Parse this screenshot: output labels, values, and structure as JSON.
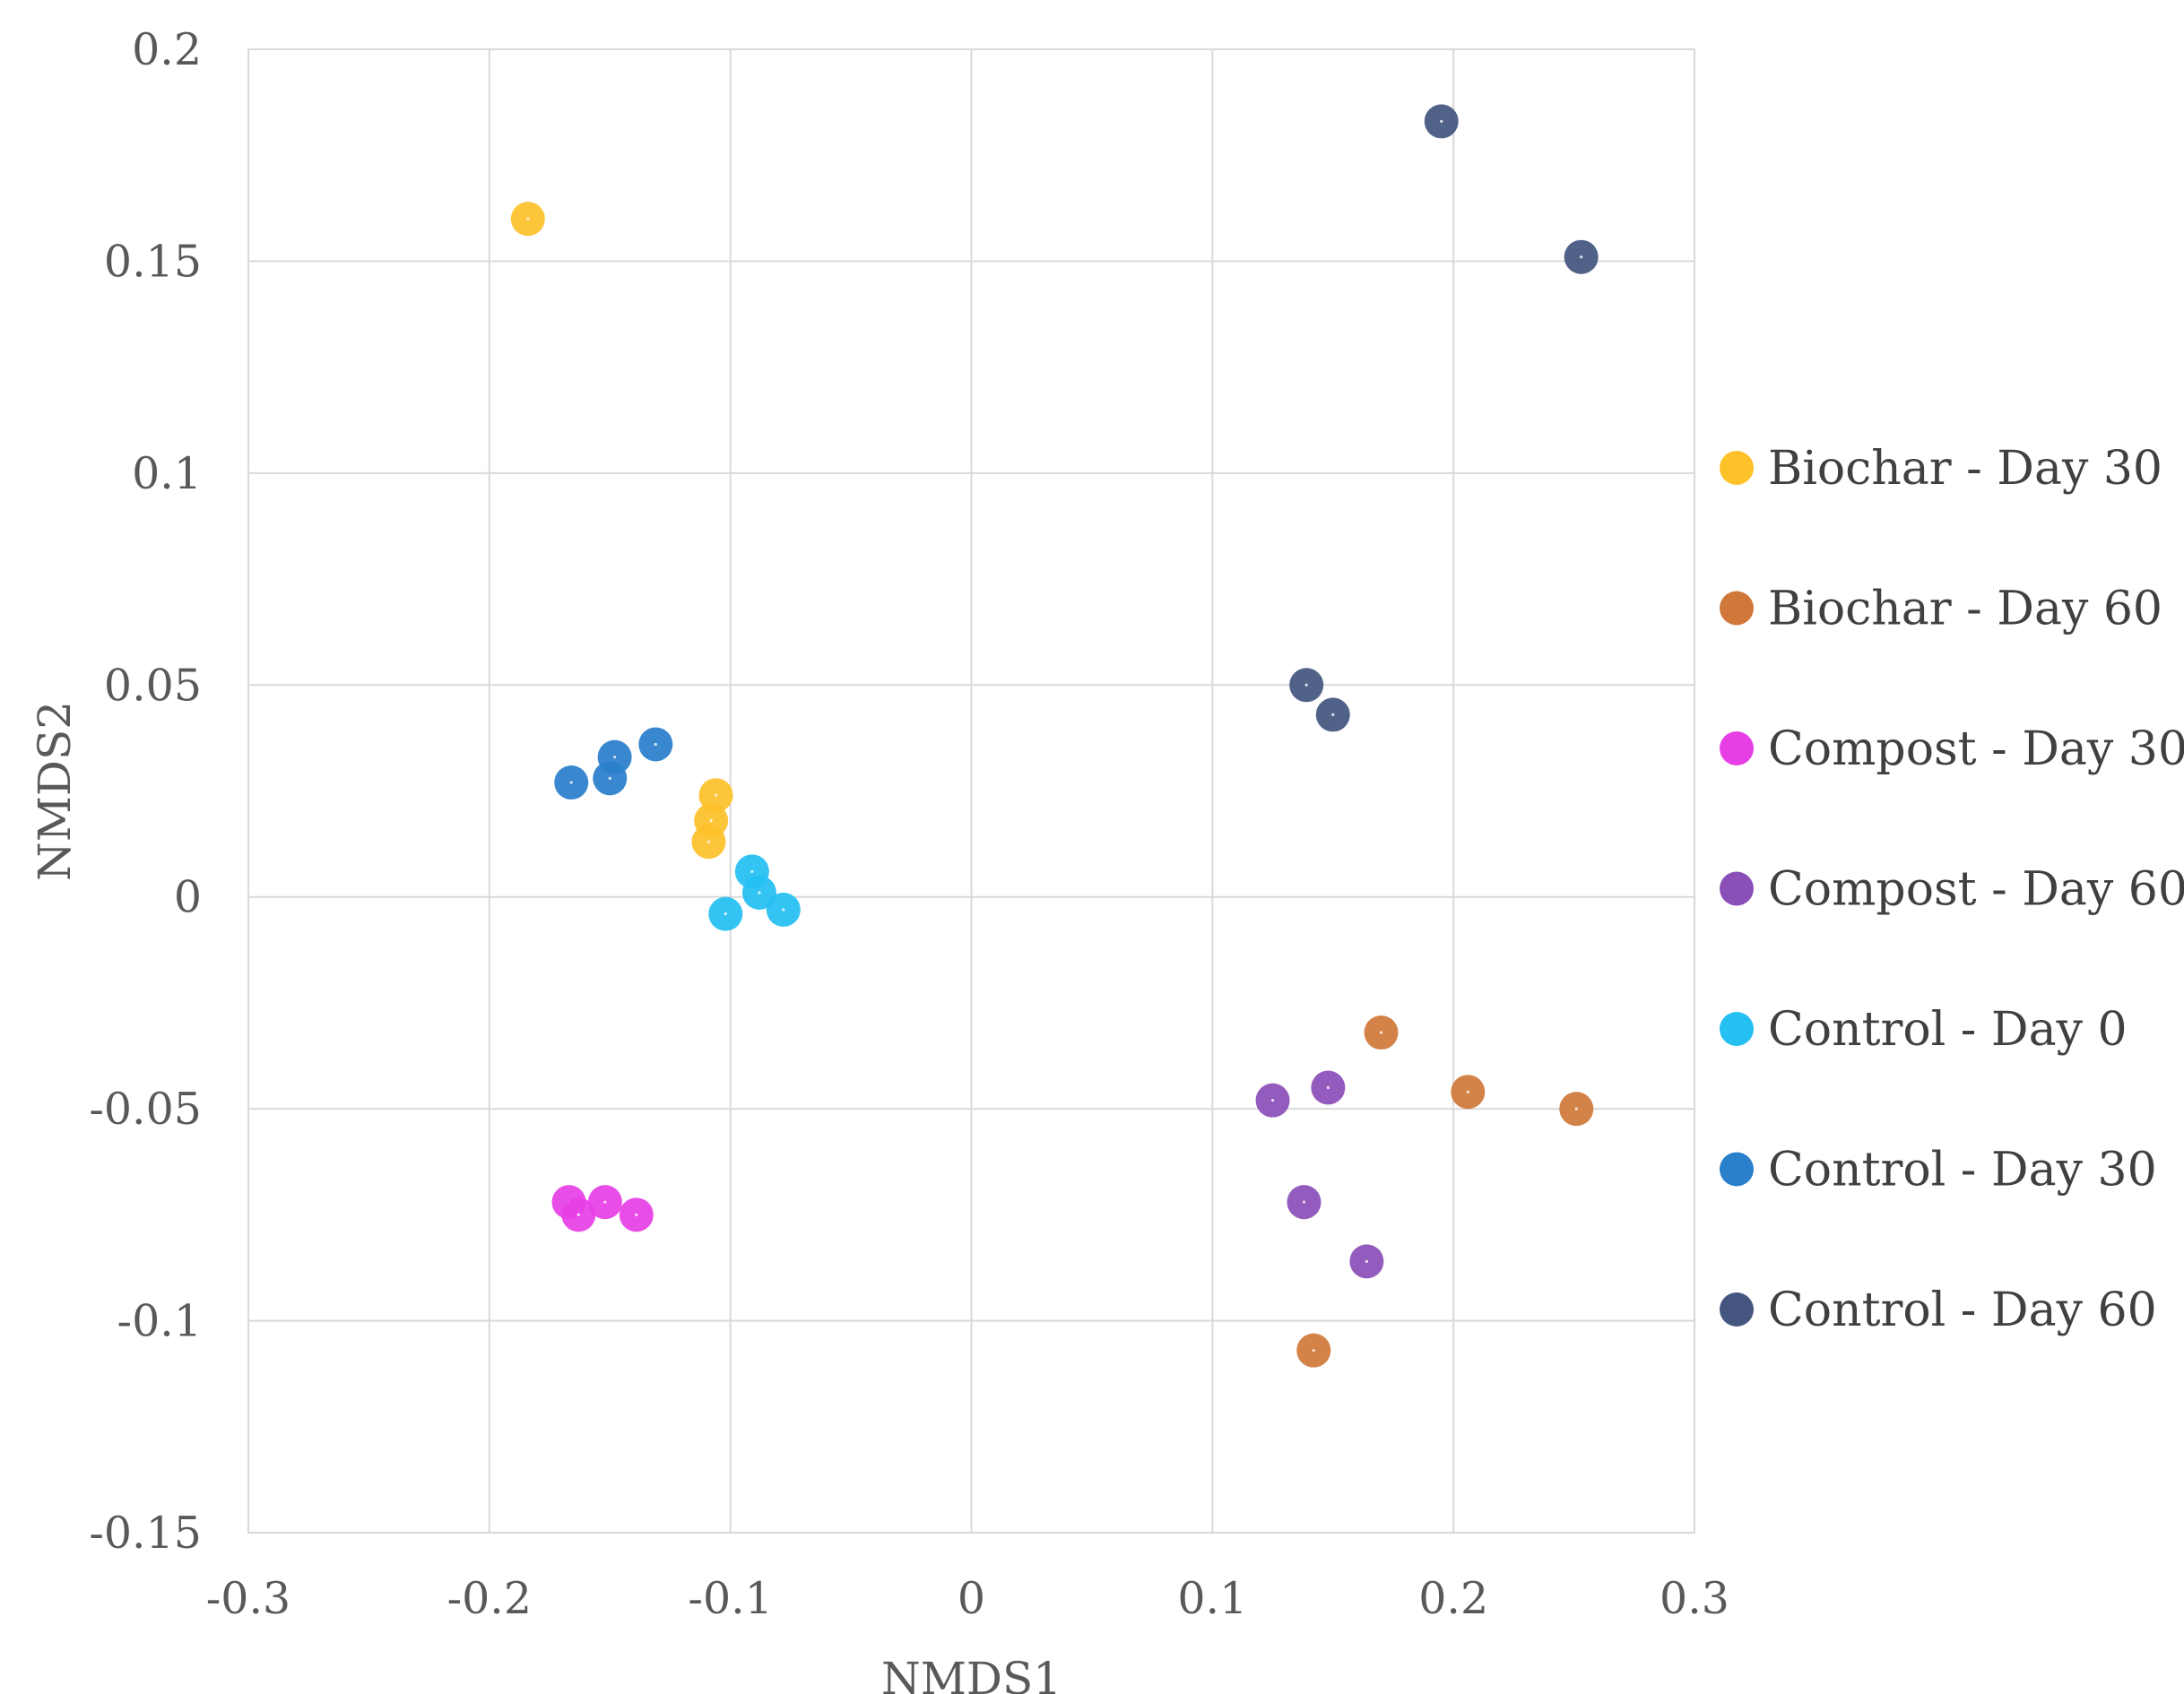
{
  "chart_data": {
    "type": "scatter",
    "title": "",
    "xlabel": "NMDS1",
    "ylabel": "NMDS2",
    "xlim": [
      -0.3,
      0.3
    ],
    "ylim": [
      -0.15,
      0.2
    ],
    "x_ticks": [
      -0.3,
      -0.2,
      -0.1,
      0,
      0.1,
      0.2,
      0.3
    ],
    "y_ticks": [
      -0.15,
      -0.1,
      -0.05,
      0,
      0.05,
      0.1,
      0.15,
      0.2
    ],
    "x_tick_labels": [
      "-0.3",
      "-0.2",
      "-0.1",
      "0",
      "0.1",
      "0.2",
      "0.3"
    ],
    "y_tick_labels": [
      "-0.15",
      "-0.1",
      "-0.05",
      "0",
      "0.05",
      "0.1",
      "0.15",
      "0.2"
    ],
    "grid": true,
    "legend_position": "right",
    "series": [
      {
        "name": "Biochar - Day 30",
        "color": "#FDC12A",
        "points": [
          [
            -0.184,
            0.16
          ],
          [
            -0.106,
            0.024
          ],
          [
            -0.108,
            0.018
          ],
          [
            -0.109,
            0.013
          ]
        ]
      },
      {
        "name": "Biochar - Day 60",
        "color": "#D0783A",
        "points": [
          [
            0.17,
            -0.032
          ],
          [
            0.206,
            -0.046
          ],
          [
            0.251,
            -0.05
          ],
          [
            0.142,
            -0.107
          ]
        ]
      },
      {
        "name": "Compost - Day 30",
        "color": "#E63FE6",
        "points": [
          [
            -0.167,
            -0.072
          ],
          [
            -0.163,
            -0.075
          ],
          [
            -0.152,
            -0.072
          ],
          [
            -0.139,
            -0.075
          ]
        ]
      },
      {
        "name": "Compost - Day 60",
        "color": "#8B4FB8",
        "points": [
          [
            0.125,
            -0.048
          ],
          [
            0.148,
            -0.045
          ],
          [
            0.138,
            -0.072
          ],
          [
            0.164,
            -0.086
          ]
        ]
      },
      {
        "name": "Control - Day 0",
        "color": "#25BFF2",
        "points": [
          [
            -0.091,
            0.006
          ],
          [
            -0.088,
            0.001
          ],
          [
            -0.102,
            -0.004
          ],
          [
            -0.078,
            -0.003
          ]
        ]
      },
      {
        "name": "Control - Day 30",
        "color": "#2A7FCB",
        "points": [
          [
            -0.166,
            0.027
          ],
          [
            -0.15,
            0.028
          ],
          [
            -0.148,
            0.033
          ],
          [
            -0.131,
            0.036
          ]
        ]
      },
      {
        "name": "Control - Day 60",
        "color": "#445680",
        "points": [
          [
            0.195,
            0.183
          ],
          [
            0.253,
            0.151
          ],
          [
            0.139,
            0.05
          ],
          [
            0.15,
            0.043
          ]
        ]
      }
    ]
  }
}
